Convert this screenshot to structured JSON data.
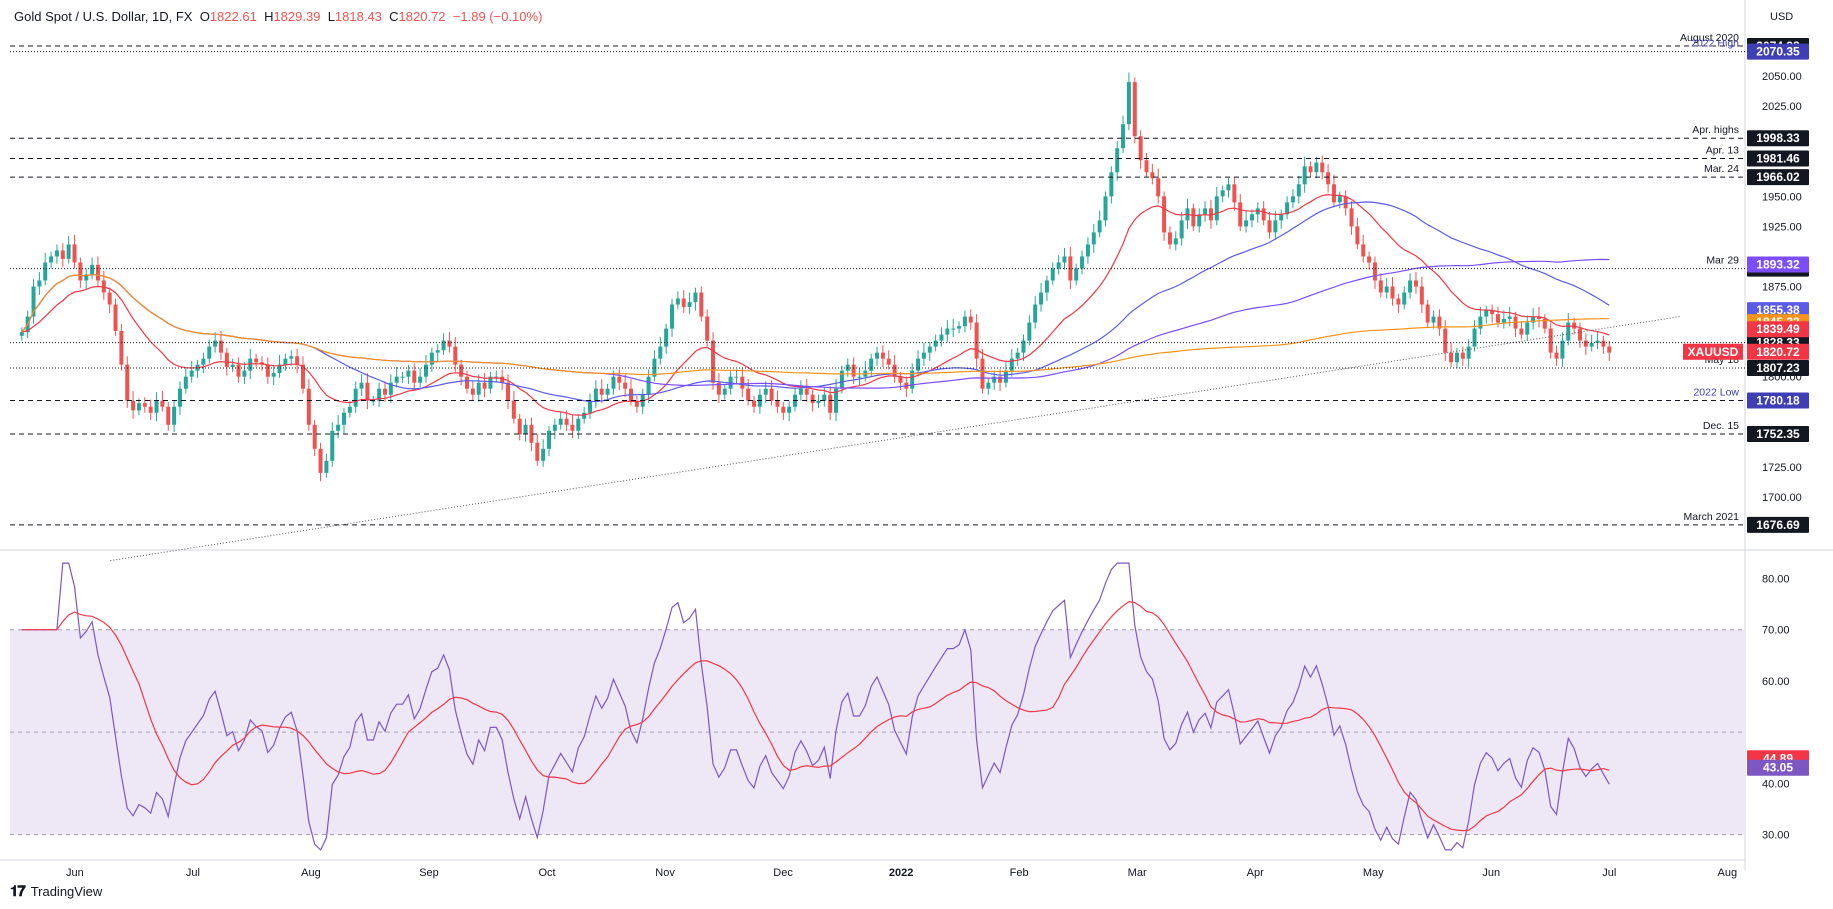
{
  "header": {
    "symbol": "Gold Spot / U.S. Dollar, 1D, FX",
    "o_label": "O",
    "o_value": "1822.61",
    "h_label": "H",
    "h_value": "1829.39",
    "l_label": "L",
    "l_value": "1818.43",
    "c_label": "C",
    "c_value": "1820.72",
    "change": "−1.89 (−0.10%)"
  },
  "brand": {
    "text": "TradingView",
    "logo": "tradingview-logo-icon"
  },
  "colors": {
    "up": "#26a69a",
    "down": "#ef5350",
    "ema20": "#f23645",
    "sma50": "#5b5be8",
    "sma100": "#7c4dff",
    "sma200": "#f7931a",
    "rsi_line": "#7e57c2",
    "rsi_signal": "#f23645",
    "rsi_band": "#ede7f6",
    "grid": "#e8e8e8"
  },
  "chart_data": [
    {
      "type": "candlestick",
      "currency": "USD",
      "ylim": [
        1660,
        2090
      ],
      "y_ticks": [
        "2050.00",
        "2025.00",
        "1950.00",
        "1925.00",
        "1875.00",
        "1800.00",
        "1725.00",
        "1700.00"
      ],
      "x_ticks": [
        "Jun",
        "Jul",
        "Aug",
        "Sep",
        "Oct",
        "Nov",
        "Dec",
        "2022",
        "Feb",
        "Mar",
        "Apr",
        "May",
        "Jun",
        "Jul",
        "Aug"
      ],
      "x_tick_pos": [
        0.5,
        1.5,
        2.5,
        3.5,
        4.5,
        5.5,
        6.5,
        7.5,
        8.5,
        9.5,
        10.5,
        11.5,
        12.5,
        13.5,
        14.5
      ],
      "level_lines": [
        {
          "label": "August 2020",
          "value": 2074.98,
          "display": "2074.98",
          "style": "dashed",
          "badge": "#131722"
        },
        {
          "label": "2022 High",
          "value": 2070.35,
          "display": "2070.35",
          "style": "dotted",
          "badge": "#3f3fb5"
        },
        {
          "label": "Apr. highs",
          "value": 1998.33,
          "display": "1998.33",
          "style": "dashed",
          "badge": "#131722"
        },
        {
          "label": "Apr. 13",
          "value": 1981.46,
          "display": "1981.46",
          "style": "dashed",
          "badge": "#131722"
        },
        {
          "label": "Mar. 24",
          "value": 1966.02,
          "display": "1966.02",
          "style": "dashed",
          "badge": "#131722"
        },
        {
          "label": "Mar 29",
          "value": 1889.91,
          "display": "1889.91",
          "style": "dotted",
          "badge": "#131722"
        },
        {
          "label": "",
          "value": 1828.33,
          "display": "1828.33",
          "style": "dotted",
          "badge": "#131722"
        },
        {
          "label": "May 18",
          "value": 1807.23,
          "display": "1807.23",
          "style": "dotted",
          "badge": "#131722"
        },
        {
          "label": "2022 Low",
          "value": 1780.18,
          "display": "1780.18",
          "style": "dashed",
          "badge": "#3f3fb5"
        },
        {
          "label": "Dec. 15",
          "value": 1752.35,
          "display": "1752.35",
          "style": "dashed",
          "badge": "#131722"
        },
        {
          "label": "March 2021",
          "value": 1676.69,
          "display": "1676.69",
          "style": "dashed",
          "badge": "#131722"
        }
      ],
      "ma_badges": [
        {
          "value": 1893.32,
          "display": "1893.32",
          "color": "#7c4dff"
        },
        {
          "value": 1855.38,
          "display": "1855.38",
          "color": "#5b5be8"
        },
        {
          "value": 1845.32,
          "display": "1845.32",
          "color": "#f7931a"
        },
        {
          "value": 1839.49,
          "display": "1839.49",
          "color": "#f23645"
        }
      ],
      "last_price": {
        "label": "XAUUSD",
        "value": 1820.72,
        "display": "1820.72",
        "color": "#f23645"
      },
      "trendline": {
        "start": [
          0.8,
          1647
        ],
        "end": [
          14.1,
          1850
        ]
      },
      "closes": [
        1837,
        1850,
        1875,
        1880,
        1895,
        1900,
        1905,
        1898,
        1910,
        1895,
        1880,
        1885,
        1893,
        1880,
        1870,
        1860,
        1838,
        1810,
        1780,
        1772,
        1778,
        1775,
        1770,
        1780,
        1775,
        1760,
        1775,
        1790,
        1800,
        1805,
        1810,
        1815,
        1825,
        1830,
        1820,
        1808,
        1810,
        1800,
        1805,
        1815,
        1812,
        1810,
        1800,
        1803,
        1810,
        1815,
        1817,
        1810,
        1790,
        1760,
        1740,
        1720,
        1730,
        1755,
        1760,
        1770,
        1775,
        1790,
        1795,
        1780,
        1780,
        1790,
        1785,
        1795,
        1800,
        1800,
        1805,
        1795,
        1800,
        1810,
        1820,
        1822,
        1830,
        1825,
        1810,
        1800,
        1790,
        1785,
        1795,
        1790,
        1800,
        1800,
        1795,
        1780,
        1765,
        1752,
        1760,
        1745,
        1730,
        1740,
        1755,
        1760,
        1765,
        1760,
        1755,
        1765,
        1770,
        1780,
        1790,
        1785,
        1790,
        1800,
        1795,
        1790,
        1780,
        1775,
        1785,
        1800,
        1815,
        1825,
        1840,
        1860,
        1865,
        1858,
        1862,
        1870,
        1850,
        1830,
        1795,
        1785,
        1790,
        1800,
        1800,
        1790,
        1780,
        1775,
        1785,
        1790,
        1780,
        1775,
        1770,
        1775,
        1785,
        1790,
        1785,
        1778,
        1780,
        1785,
        1770,
        1790,
        1805,
        1810,
        1800,
        1800,
        1805,
        1815,
        1820,
        1815,
        1810,
        1800,
        1795,
        1790,
        1805,
        1815,
        1820,
        1825,
        1830,
        1835,
        1840,
        1840,
        1842,
        1850,
        1845,
        1815,
        1790,
        1795,
        1800,
        1795,
        1805,
        1815,
        1820,
        1830,
        1845,
        1860,
        1870,
        1880,
        1890,
        1895,
        1900,
        1880,
        1890,
        1900,
        1910,
        1920,
        1930,
        1950,
        1970,
        1990,
        2010,
        2045,
        2000,
        1980,
        1970,
        1965,
        1950,
        1920,
        1910,
        1915,
        1930,
        1940,
        1925,
        1935,
        1940,
        1930,
        1950,
        1955,
        1960,
        1945,
        1925,
        1930,
        1935,
        1940,
        1930,
        1920,
        1930,
        1935,
        1945,
        1950,
        1960,
        1975,
        1970,
        1978,
        1970,
        1960,
        1945,
        1950,
        1940,
        1925,
        1910,
        1900,
        1895,
        1880,
        1870,
        1875,
        1865,
        1860,
        1870,
        1880,
        1875,
        1860,
        1845,
        1850,
        1840,
        1820,
        1812,
        1820,
        1815,
        1825,
        1840,
        1850,
        1855,
        1852,
        1845,
        1848,
        1850,
        1840,
        1835,
        1845,
        1850,
        1848,
        1840,
        1820,
        1815,
        1830,
        1845,
        1840,
        1830,
        1825,
        1828,
        1830,
        1825,
        1820
      ]
    },
    {
      "type": "line",
      "name": "RSI",
      "ylim": [
        26,
        84
      ],
      "y_ticks": [
        "80.00",
        "70.00",
        "60.00",
        "40.00",
        "30.00"
      ],
      "band": [
        30,
        70
      ],
      "mid": 50,
      "badges": [
        {
          "value": 44.89,
          "display": "44.89",
          "color": "#f23645"
        },
        {
          "value": 43.05,
          "display": "43.05",
          "color": "#7e57c2"
        }
      ]
    }
  ]
}
